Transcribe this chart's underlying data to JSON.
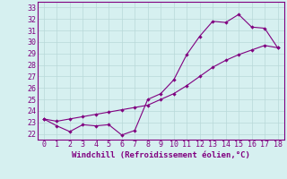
{
  "xlabel": "Windchill (Refroidissement éolien,°C)",
  "x_data": [
    0,
    1,
    2,
    3,
    4,
    5,
    6,
    7,
    8,
    9,
    10,
    11,
    12,
    13,
    14,
    15,
    16,
    17,
    18
  ],
  "y_line1": [
    23.3,
    22.7,
    22.2,
    22.8,
    22.7,
    22.8,
    21.9,
    22.3,
    25.0,
    25.5,
    26.7,
    28.9,
    30.5,
    31.8,
    31.7,
    32.4,
    31.3,
    31.2,
    29.5
  ],
  "y_line2": [
    23.3,
    23.1,
    23.3,
    23.5,
    23.7,
    23.9,
    24.1,
    24.3,
    24.5,
    25.0,
    25.5,
    26.2,
    27.0,
    27.8,
    28.4,
    28.9,
    29.3,
    29.7,
    29.5
  ],
  "ylim": [
    21.5,
    33.5
  ],
  "yticks": [
    22,
    23,
    24,
    25,
    26,
    27,
    28,
    29,
    30,
    31,
    32,
    33
  ],
  "xlim": [
    -0.5,
    18.5
  ],
  "xticks": [
    0,
    1,
    2,
    3,
    4,
    5,
    6,
    7,
    8,
    9,
    10,
    11,
    12,
    13,
    14,
    15,
    16,
    17,
    18
  ],
  "line_color": "#800080",
  "bg_color": "#d6f0f0",
  "grid_color": "#b8d8d8",
  "marker": "D",
  "marker_size": 2.2,
  "font_color": "#800080",
  "tick_fontsize": 6.0,
  "xlabel_fontsize": 6.5
}
